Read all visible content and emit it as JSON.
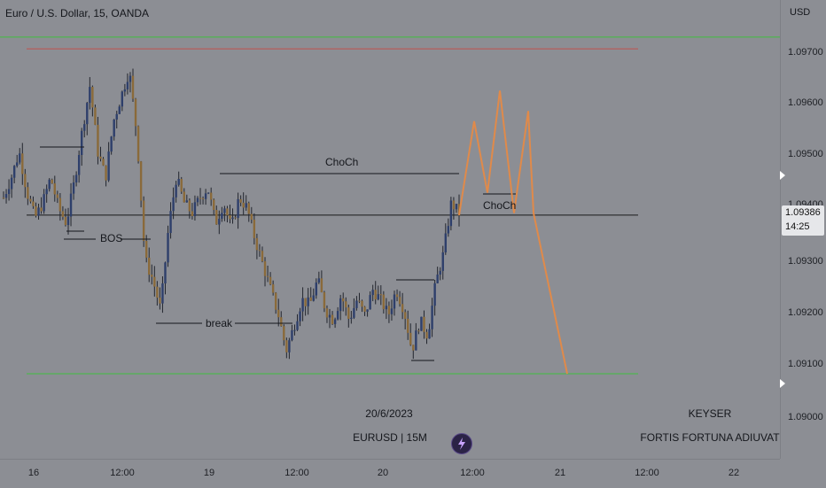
{
  "header": {
    "title": "Euro / U.S. Dollar, 15, OANDA"
  },
  "price_axis": {
    "currency": "USD",
    "ticks": [
      "1.09700",
      "1.09600",
      "1.09500",
      "1.09400",
      "1.09300",
      "1.09200",
      "1.09100",
      "1.09000"
    ],
    "current_price": "1.09386",
    "countdown": "14:25"
  },
  "time_axis": {
    "ticks": [
      "16",
      "12:00",
      "19",
      "12:00",
      "20",
      "12:00",
      "21",
      "12:00",
      "22"
    ]
  },
  "annotations": {
    "bos": "BOS",
    "break": "break",
    "choch_top": "ChoCh",
    "choch_right": "ChoCh"
  },
  "captions": {
    "date": "20/6/2023",
    "symbol": "EURUSD | 15M",
    "author": "KEYSER",
    "motto": "FORTIS FORTUNA ADIUVAT"
  },
  "colors": {
    "background": "#8c8e94",
    "bull_candle": "#2e3f6b",
    "bear_candle": "#8a6a3a",
    "projection": "#e08a4a",
    "green_level": "#3fbf3f",
    "red_level": "#c0504d"
  },
  "chart_data": {
    "type": "candlestick",
    "symbol": "EURUSD",
    "timeframe": "15",
    "ylim": [
      1.0899,
      1.0975
    ],
    "current_price": 1.09386,
    "levels": {
      "resistance": 1.09735,
      "top_red": 1.09712,
      "support": 1.09075,
      "choch": 1.09386
    },
    "projection_path": [
      1.09386,
      1.0957,
      1.0943,
      1.0963,
      1.0939,
      1.0959,
      1.0939,
      1.09075
    ],
    "price_series": [
      1.0942,
      1.0946,
      1.0951,
      1.0943,
      1.0938,
      1.0941,
      1.0946,
      1.094,
      1.0937,
      1.0945,
      1.0955,
      1.0964,
      1.0951,
      1.0946,
      1.0957,
      1.0962,
      1.0967,
      1.0954,
      1.093,
      1.0926,
      1.092,
      1.0936,
      1.0946,
      1.0941,
      1.0939,
      1.0942,
      1.0944,
      1.0937,
      1.0941,
      1.0936,
      1.0942,
      1.094,
      1.0934,
      1.0929,
      1.0924,
      1.0919,
      1.0912,
      1.0917,
      1.0922,
      1.0921,
      1.0926,
      1.092,
      1.0918,
      1.0923,
      1.0918,
      1.0922,
      1.0919,
      1.0924,
      1.0922,
      1.0919,
      1.0924,
      1.092,
      1.0912,
      1.0918,
      1.0915,
      1.0925,
      1.0931,
      1.0941,
      1.0939
    ]
  }
}
